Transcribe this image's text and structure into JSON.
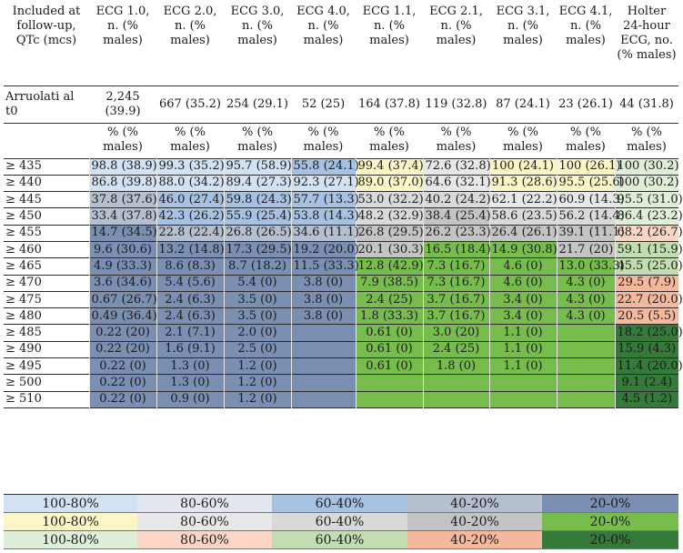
{
  "palette": {
    "A": [
      "#d3e2f3",
      "#e2e6ee",
      "#a7c1e3",
      "#b5bfd0",
      "#7a8fb2"
    ],
    "B": [
      "#fbf5c7",
      "#e8e8e8",
      "#d9d9d9",
      "#c4c4c4",
      "#78bc4d"
    ],
    "C": [
      "#dfeed8",
      "#fbd6c7",
      "#c3ddb3",
      "#f5b89c",
      "#357a3a"
    ]
  },
  "header": {
    "first_col": "Included at follow-up, QTc (mcs)",
    "columns": [
      "ECG 1.0, n. (% males)",
      "ECG 2.0, n. (% males)",
      "ECG 3.0, n. (% males)",
      "ECG 4.0, n. (% males)",
      "ECG 1.1, n. (% males)",
      "ECG 2.1, n. (% males)",
      "ECG 3.1, n. (% males)",
      "ECG 4.1, n. (% males)",
      "Holter 24-hour ECG, no. (% males)"
    ],
    "column_groups": [
      "A",
      "A",
      "A",
      "A",
      "B",
      "B",
      "B",
      "B",
      "C"
    ]
  },
  "baseline": {
    "label": "Arruolati al t0",
    "values": [
      "2,245 (39.9)",
      "667 (35.2)",
      "254 (29.1)",
      "52 (25)",
      "164 (37.8)",
      "119 (32.8)",
      "87 (24.1)",
      "23 (26.1)",
      "44 (31.8)"
    ]
  },
  "subheader": "% (% males)",
  "rows": [
    {
      "label": "≥ 435",
      "cells": [
        "98.8 (38.9)",
        "99.3 (35.2)",
        "95.7 (58.9)",
        "55.8 (24.1)",
        "99.4 (37.4)",
        "72.6 (32.8)",
        "100 (24.1)",
        "100 (26.1)",
        "100 (30.2)"
      ],
      "levels": [
        0,
        0,
        0,
        2,
        0,
        1,
        0,
        0,
        0
      ]
    },
    {
      "label": "≥ 440",
      "cells": [
        "86.8 (39.8)",
        "88.0 (34.2)",
        "89.4 (27.3)",
        "92.3 (27.1)",
        "89.0 (37.0)",
        "64.6 (32.1)",
        "91.3 (28.6)",
        "95.5 (25.6)",
        "100 (30.2)"
      ],
      "levels": [
        0,
        0,
        0,
        0,
        0,
        1,
        0,
        0,
        0
      ]
    },
    {
      "label": "≥ 445",
      "cells": [
        "37.8 (37.6)",
        "46.0 (27.4)",
        "59.8 (24.3)",
        "57.7 (13.3)",
        "53.0 (32.2)",
        "40.2 (24.2)",
        "62.1 (22.2)",
        "60.9 (14.3)",
        "95.5 (31.0)"
      ],
      "levels": [
        3,
        2,
        2,
        2,
        2,
        2,
        1,
        1,
        0
      ]
    },
    {
      "label": "≥ 450",
      "cells": [
        "33.4 (37.8)",
        "42.3 (26.2)",
        "55.9 (25.4)",
        "53.8 (14.3)",
        "48.2 (32.9)",
        "38.4 (25.4)",
        "58.6 (23.5)",
        "56.2 (14.4)",
        "86.4 (23.2)"
      ],
      "levels": [
        3,
        2,
        2,
        2,
        2,
        3,
        2,
        2,
        0
      ]
    },
    {
      "label": "≥ 455",
      "cells": [
        "14.7 (34.5)",
        "22.8 (22.4)",
        "26.8 (26.5)",
        "34.6 (11.1)",
        "26.8 (29.5)",
        "26.2 (23.3)",
        "26.4 (26.1)",
        "39.1 (11.1)",
        "68.2 (26.7)"
      ],
      "levels": [
        4,
        3,
        3,
        3,
        3,
        3,
        3,
        3,
        1
      ]
    },
    {
      "label": "≥ 460",
      "cells": [
        "9.6 (30.6)",
        "13.2 (14.8)",
        "17.3 (29.5)",
        "19.2 (20.0)",
        "20.1 (30.3)",
        "16.5 (18.4)",
        "14.9 (30.8)",
        "21.7 (20)",
        "59.1 (15.9)"
      ],
      "levels": [
        4,
        4,
        4,
        4,
        3,
        4,
        4,
        3,
        2
      ]
    },
    {
      "label": "≥ 465",
      "cells": [
        "4.9 (33.3)",
        "8.6 (8.3)",
        "8.7 (18.2)",
        "11.5 (33.3)",
        "12.8 (42.9)",
        "7.3 (16.7)",
        "4.6 (0)",
        "13.0 (33.3)",
        "45.5 (25.0)"
      ],
      "levels": [
        4,
        4,
        4,
        4,
        4,
        4,
        4,
        4,
        2
      ]
    },
    {
      "label": "≥ 470",
      "cells": [
        "3.6 (34.6)",
        "5.4 (5.6)",
        "5.4 (0)",
        "3.8 (0)",
        "7.9 (38.5)",
        "7.3 (16.7)",
        "4.6 (0)",
        "4.3 (0)",
        "29.5 (7.9)"
      ],
      "levels": [
        4,
        4,
        4,
        4,
        4,
        4,
        4,
        4,
        3
      ]
    },
    {
      "label": "≥ 475",
      "cells": [
        "0.67 (26.7)",
        "2.4 (6.3)",
        "3.5 (0)",
        "3.8 (0)",
        "2.4 (25)",
        "3.7 (16.7)",
        "3.4 (0)",
        "4.3 (0)",
        "22.7 (20.0)"
      ],
      "levels": [
        4,
        4,
        4,
        4,
        4,
        4,
        4,
        4,
        3
      ]
    },
    {
      "label": "≥ 480",
      "cells": [
        "0.49 (36.4)",
        "2.4 (6.3)",
        "3.5 (0)",
        "3.8 (0)",
        "1.8 (33.3)",
        "3.7 (16.7)",
        "3.4 (0)",
        "4.3 (0)",
        "20.5 (5.5)"
      ],
      "levels": [
        4,
        4,
        4,
        4,
        4,
        4,
        4,
        4,
        3
      ]
    },
    {
      "label": "≥ 485",
      "cells": [
        "0.22 (20)",
        "2.1 (7.1)",
        "2.0 (0)",
        "",
        "0.61 (0)",
        "3.0 (20)",
        "1.1 (0)",
        "",
        "18.2 (25.0)"
      ],
      "levels": [
        4,
        4,
        4,
        4,
        4,
        4,
        4,
        4,
        4
      ]
    },
    {
      "label": "≥ 490",
      "cells": [
        "0.22 (20)",
        "1.6 (9.1)",
        "2.5 (0)",
        "",
        "0.61 (0)",
        "2.4 (25)",
        "1.1 (0)",
        "",
        "15.9 (4.3)"
      ],
      "levels": [
        4,
        4,
        4,
        4,
        4,
        4,
        4,
        4,
        4
      ]
    },
    {
      "label": "≥ 495",
      "cells": [
        "0.22 (0)",
        "1.3 (0)",
        "1.2 (0)",
        "",
        "0.61 (0)",
        "1.8 (0)",
        "1.1 (0)",
        "",
        "11.4 (20.0)"
      ],
      "levels": [
        4,
        4,
        4,
        4,
        4,
        4,
        4,
        4,
        4
      ]
    },
    {
      "label": "≥ 500",
      "cells": [
        "0.22 (0)",
        "1.3 (0)",
        "1.2 (0)",
        "",
        "",
        "",
        "",
        "",
        "9.1 (2.4)"
      ],
      "levels": [
        4,
        4,
        4,
        4,
        4,
        4,
        4,
        4,
        4
      ]
    },
    {
      "label": "≥ 510",
      "cells": [
        "0.22 (0)",
        "0.9 (0)",
        "1.2 (0)",
        "",
        "",
        "",
        "",
        "",
        "4.5 (1.2)"
      ],
      "levels": [
        4,
        4,
        4,
        4,
        4,
        4,
        4,
        4,
        4
      ]
    }
  ],
  "legend": {
    "labels": [
      "100-80%",
      "80-60%",
      "60-40%",
      "40-20%",
      "20-0%"
    ],
    "groups": [
      "A",
      "B",
      "C"
    ]
  }
}
